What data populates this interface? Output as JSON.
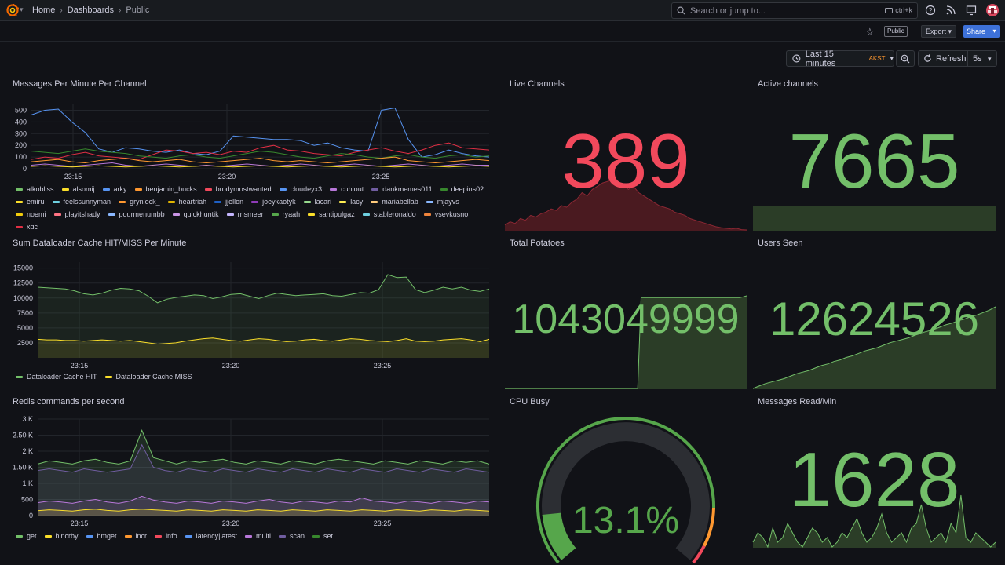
{
  "colors": {
    "bg": "#111217",
    "panel_text": "#ccccdc",
    "red": "#f2495c",
    "green": "#73bf69",
    "accent_blue": "#3d71d9",
    "tz_orange": "#ff9830"
  },
  "topnav": {
    "logo_icon": "grafana-logo-icon",
    "breadcrumbs": [
      "Home",
      "Dashboards",
      "Public"
    ],
    "search_placeholder": "Search or jump to...",
    "search_shortcut": "ctrl+k",
    "icons": [
      "help-icon",
      "rss-icon",
      "dashboard-icon",
      "user-avatar-icon"
    ]
  },
  "toolbar": {
    "public_label": "Public",
    "export_label": "Export",
    "share_label": "Share"
  },
  "time_controls": {
    "range_label": "Last 15 minutes",
    "timezone": "AKST",
    "refresh_label": "Refresh",
    "interval": "5s"
  },
  "panels": {
    "messages_per_minute": {
      "title": "Messages Per Minute Per Channel",
      "legend": [
        "alkobliss",
        "alsomij",
        "arky",
        "benjamin_bucks",
        "brodymostwanted",
        "cloudeyx3",
        "cuhlout",
        "dankmemes011",
        "deepins02",
        "emiru",
        "feelssunnyman",
        "grynlock_",
        "heartriah",
        "jjellon",
        "joeykaotyk",
        "lacari",
        "lacy",
        "mariabellab",
        "mjayvs",
        "noemi",
        "playitshady",
        "pourmenumbb",
        "quickhuntik",
        "rnsmeer",
        "ryaah",
        "santipulgaz",
        "stableronaldo",
        "vsevkusno",
        "xqc"
      ],
      "legend_colors": [
        "#73bf69",
        "#fade2a",
        "#5794f2",
        "#ff9830",
        "#f2495c",
        "#5794f2",
        "#b877d9",
        "#705da0",
        "#37872d",
        "#fade2a",
        "#6ed0e0",
        "#ff9830",
        "#e0b400",
        "#1f60c4",
        "#8f3bb8",
        "#96d98d",
        "#ffee52",
        "#ffcb7d",
        "#8ab8ff",
        "#f2cc0c",
        "#ff7383",
        "#8ab8ff",
        "#ca95e5",
        "#c4b5fd",
        "#56a64b",
        "#fade2a",
        "#6ed0e0",
        "#ef843c",
        "#e02f44"
      ]
    },
    "dataloader_cache": {
      "title": "Sum Dataloader Cache HIT/MISS Per Minute",
      "legend": [
        "Dataloader Cache HIT",
        "Dataloader Cache MISS"
      ]
    },
    "redis_commands": {
      "title": "Redis commands per second",
      "legend": [
        "get",
        "hincrby",
        "hmget",
        "incr",
        "info",
        "latency|latest",
        "multi",
        "scan",
        "set"
      ],
      "legend_colors": [
        "#73bf69",
        "#fade2a",
        "#5794f2",
        "#ff9830",
        "#f2495c",
        "#5794f2",
        "#b877d9",
        "#705da0",
        "#37872d"
      ]
    },
    "live_channels": {
      "title": "Live Channels",
      "value": "389"
    },
    "active_channels": {
      "title": "Active channels",
      "value": "7665"
    },
    "total_potatoes": {
      "title": "Total Potatoes",
      "value": "1043049999"
    },
    "users_seen": {
      "title": "Users Seen",
      "value": "12624526"
    },
    "cpu_busy": {
      "title": "CPU Busy",
      "value": "13.1%",
      "fraction": 0.131
    },
    "messages_read": {
      "title": "Messages Read/Min",
      "value": "1628"
    }
  },
  "chart_data": [
    {
      "type": "line",
      "panel": "Messages Per Minute Per Channel",
      "x_ticks": [
        "23:15",
        "23:20",
        "23:25"
      ],
      "y_ticks": [
        "0",
        "100",
        "200",
        "300",
        "400",
        "500"
      ],
      "ylim": [
        0,
        550
      ],
      "series": [
        {
          "name": "jjellon",
          "values": [
            460,
            500,
            510,
            400,
            310,
            170,
            140,
            180,
            170,
            150,
            140,
            160,
            130,
            120,
            150,
            280,
            270,
            260,
            250,
            250,
            240,
            200,
            220,
            180,
            160,
            150,
            500,
            520,
            250,
            100,
            120,
            160,
            130,
            110,
            100
          ]
        },
        {
          "name": "heartriah",
          "values": [
            80,
            100,
            90,
            120,
            140,
            110,
            100,
            90,
            80,
            120,
            160,
            150,
            130,
            140,
            120,
            150,
            140,
            180,
            200,
            160,
            150,
            130,
            120,
            110,
            140,
            160,
            180,
            150,
            130,
            160,
            200,
            220,
            180,
            170,
            160
          ]
        },
        {
          "name": "deepins02",
          "values": [
            150,
            140,
            130,
            150,
            170,
            150,
            140,
            130,
            110,
            100,
            90,
            110,
            120,
            100,
            90,
            110,
            130,
            150,
            140,
            120,
            100,
            90,
            110,
            130,
            120,
            100,
            90,
            110,
            120,
            100,
            90,
            110,
            120,
            100,
            110
          ]
        },
        {
          "name": "alsomij",
          "values": [
            60,
            70,
            80,
            60,
            50,
            70,
            80,
            90,
            70,
            60,
            70,
            80,
            60,
            50,
            60,
            70,
            80,
            90,
            70,
            60,
            70,
            60,
            50,
            60,
            70,
            80,
            90,
            100,
            70,
            60,
            50,
            60,
            70,
            80,
            70
          ]
        },
        {
          "name": "lacy",
          "values": [
            30,
            40,
            30,
            20,
            30,
            40,
            50,
            30,
            20,
            30,
            40,
            30,
            20,
            30,
            20,
            30,
            40,
            30,
            20,
            30,
            40,
            30,
            20,
            30,
            40,
            30,
            20,
            30,
            40,
            30,
            20,
            30,
            40,
            30,
            30
          ]
        },
        {
          "name": "emiru",
          "values": [
            20,
            25,
            20,
            15,
            20,
            25,
            20,
            15,
            20,
            25,
            20,
            15,
            20,
            25,
            20,
            15,
            20,
            25,
            20,
            15,
            20,
            25,
            20,
            15,
            20,
            25,
            20,
            15,
            20,
            25,
            20,
            15,
            20,
            25,
            20
          ]
        }
      ]
    },
    {
      "type": "area",
      "panel": "Sum Dataloader Cache HIT/MISS Per Minute",
      "x_ticks": [
        "23:15",
        "23:20",
        "23:25"
      ],
      "y_ticks": [
        "2500",
        "5000",
        "7500",
        "10000",
        "12500",
        "15000"
      ],
      "ylim": [
        0,
        16000
      ],
      "series": [
        {
          "name": "Dataloader Cache HIT",
          "values": [
            11800,
            11700,
            11600,
            11500,
            11200,
            10700,
            10500,
            10800,
            11300,
            11600,
            11500,
            11200,
            10300,
            9200,
            9800,
            10100,
            10300,
            10500,
            10400,
            9900,
            10200,
            10600,
            10700,
            10300,
            9900,
            10400,
            10800,
            10600,
            10400,
            10500,
            10600,
            10700,
            10400,
            10300,
            10600,
            10900,
            10800,
            11400,
            13900,
            13400,
            13500,
            11400,
            10900,
            11300,
            11800,
            11500,
            11800,
            11300,
            11100,
            11500
          ]
        },
        {
          "name": "Dataloader Cache MISS",
          "values": [
            3100,
            3000,
            3000,
            2900,
            2900,
            2800,
            2900,
            3000,
            2900,
            2800,
            2900,
            2700,
            2500,
            2300,
            2400,
            2500,
            2800,
            3000,
            3200,
            3300,
            3100,
            2900,
            2800,
            3000,
            3200,
            3100,
            2900,
            2700,
            2800,
            3000,
            3100,
            2900,
            2800,
            3000,
            3200,
            3100,
            2900,
            2800,
            2700,
            2900,
            3200,
            2800,
            2700,
            2800,
            3000,
            3100,
            3200,
            3000,
            2700,
            3100
          ]
        }
      ]
    },
    {
      "type": "area",
      "panel": "Redis commands per second",
      "x_ticks": [
        "23:15",
        "23:20",
        "23:25"
      ],
      "y_ticks": [
        "0",
        "500",
        "1 K",
        "1.50 K",
        "2 K",
        "2.50 K",
        "3 K"
      ],
      "ylim": [
        0,
        3000
      ],
      "series": [
        {
          "name": "get",
          "values": [
            1600,
            1700,
            1650,
            1600,
            1700,
            1750,
            1650,
            1600,
            1700,
            2650,
            1800,
            1700,
            1600,
            1700,
            1650,
            1700,
            1750,
            1650,
            1600,
            1700,
            1650,
            1600,
            1700,
            1650,
            1600,
            1700,
            1750,
            1700,
            1650,
            1600,
            1700,
            1650,
            1600,
            1700,
            1650,
            1600,
            1700,
            1650,
            1700,
            1600
          ]
        },
        {
          "name": "hmget",
          "values": [
            1400,
            1450,
            1400,
            1350,
            1450,
            1400,
            1350,
            1400,
            1450,
            2200,
            1500,
            1400,
            1350,
            1450,
            1400,
            1350,
            1450,
            1400,
            1350,
            1450,
            1400,
            1350,
            1450,
            1400,
            1350,
            1450,
            1400,
            1350,
            1450,
            1400,
            1350,
            1450,
            1400,
            1350,
            1450,
            1400,
            1350,
            1450,
            1400,
            1350
          ]
        },
        {
          "name": "multi",
          "values": [
            400,
            450,
            420,
            380,
            450,
            500,
            420,
            380,
            450,
            600,
            480,
            420,
            380,
            450,
            420,
            380,
            450,
            420,
            380,
            450,
            500,
            420,
            380,
            450,
            420,
            380,
            450,
            420,
            550,
            450,
            420,
            380,
            450,
            420,
            380,
            450,
            420,
            380,
            450,
            420
          ]
        },
        {
          "name": "hincrby",
          "values": [
            150,
            180,
            160,
            140,
            180,
            200,
            160,
            140,
            180,
            200,
            180,
            160,
            140,
            180,
            160,
            140,
            180,
            160,
            140,
            180,
            160,
            140,
            180,
            160,
            140,
            180,
            160,
            140,
            180,
            160,
            140,
            180,
            160,
            140,
            180,
            160,
            140,
            180,
            160,
            140
          ]
        }
      ]
    },
    {
      "type": "area",
      "panel": "Live Channels sparkline",
      "values": [
        20,
        30,
        25,
        40,
        35,
        50,
        45,
        55,
        60,
        70,
        65,
        80,
        75,
        90,
        100,
        120,
        110,
        130,
        140,
        150,
        155,
        160,
        150,
        145,
        130,
        140,
        120,
        110,
        100,
        90,
        80,
        75,
        70,
        60,
        55,
        50,
        40,
        35,
        30,
        25,
        20,
        15,
        12,
        10,
        8,
        10,
        6,
        5
      ]
    },
    {
      "type": "area",
      "panel": "Total Potatoes sparkline",
      "values": [
        0,
        0,
        0,
        0,
        0,
        0,
        0,
        0,
        0,
        0,
        0,
        0,
        0,
        0,
        0,
        0,
        0,
        0,
        0,
        0,
        0,
        0,
        0,
        0,
        0,
        0,
        0,
        0,
        0,
        0,
        0,
        0,
        0,
        0,
        0,
        0,
        0,
        0,
        0,
        0,
        100,
        100,
        100,
        100,
        100,
        100,
        100,
        100,
        100,
        100,
        100,
        100,
        100,
        100,
        100,
        100,
        100,
        100,
        100,
        100,
        100,
        100,
        100,
        100,
        100,
        100,
        100,
        100,
        100,
        100,
        101,
        102
      ]
    },
    {
      "type": "area",
      "panel": "Users Seen sparkline",
      "values": [
        0,
        3,
        6,
        8,
        10,
        12,
        15,
        18,
        20,
        22,
        25,
        28,
        30,
        33,
        35,
        38,
        40,
        43,
        46,
        48,
        50,
        53,
        56,
        58,
        60,
        62,
        65,
        68,
        70,
        72,
        75,
        78,
        80,
        83,
        85,
        88,
        90,
        93,
        96,
        100
      ]
    },
    {
      "type": "area",
      "panel": "Messages Read/Min sparkline",
      "values": [
        30,
        40,
        35,
        25,
        45,
        30,
        35,
        50,
        40,
        30,
        25,
        35,
        45,
        40,
        30,
        35,
        25,
        30,
        40,
        35,
        45,
        55,
        40,
        30,
        35,
        45,
        60,
        40,
        30,
        35,
        40,
        30,
        45,
        50,
        70,
        45,
        30,
        35,
        40,
        30,
        50,
        40,
        80,
        35,
        30,
        40,
        35,
        30,
        25,
        30
      ]
    }
  ]
}
